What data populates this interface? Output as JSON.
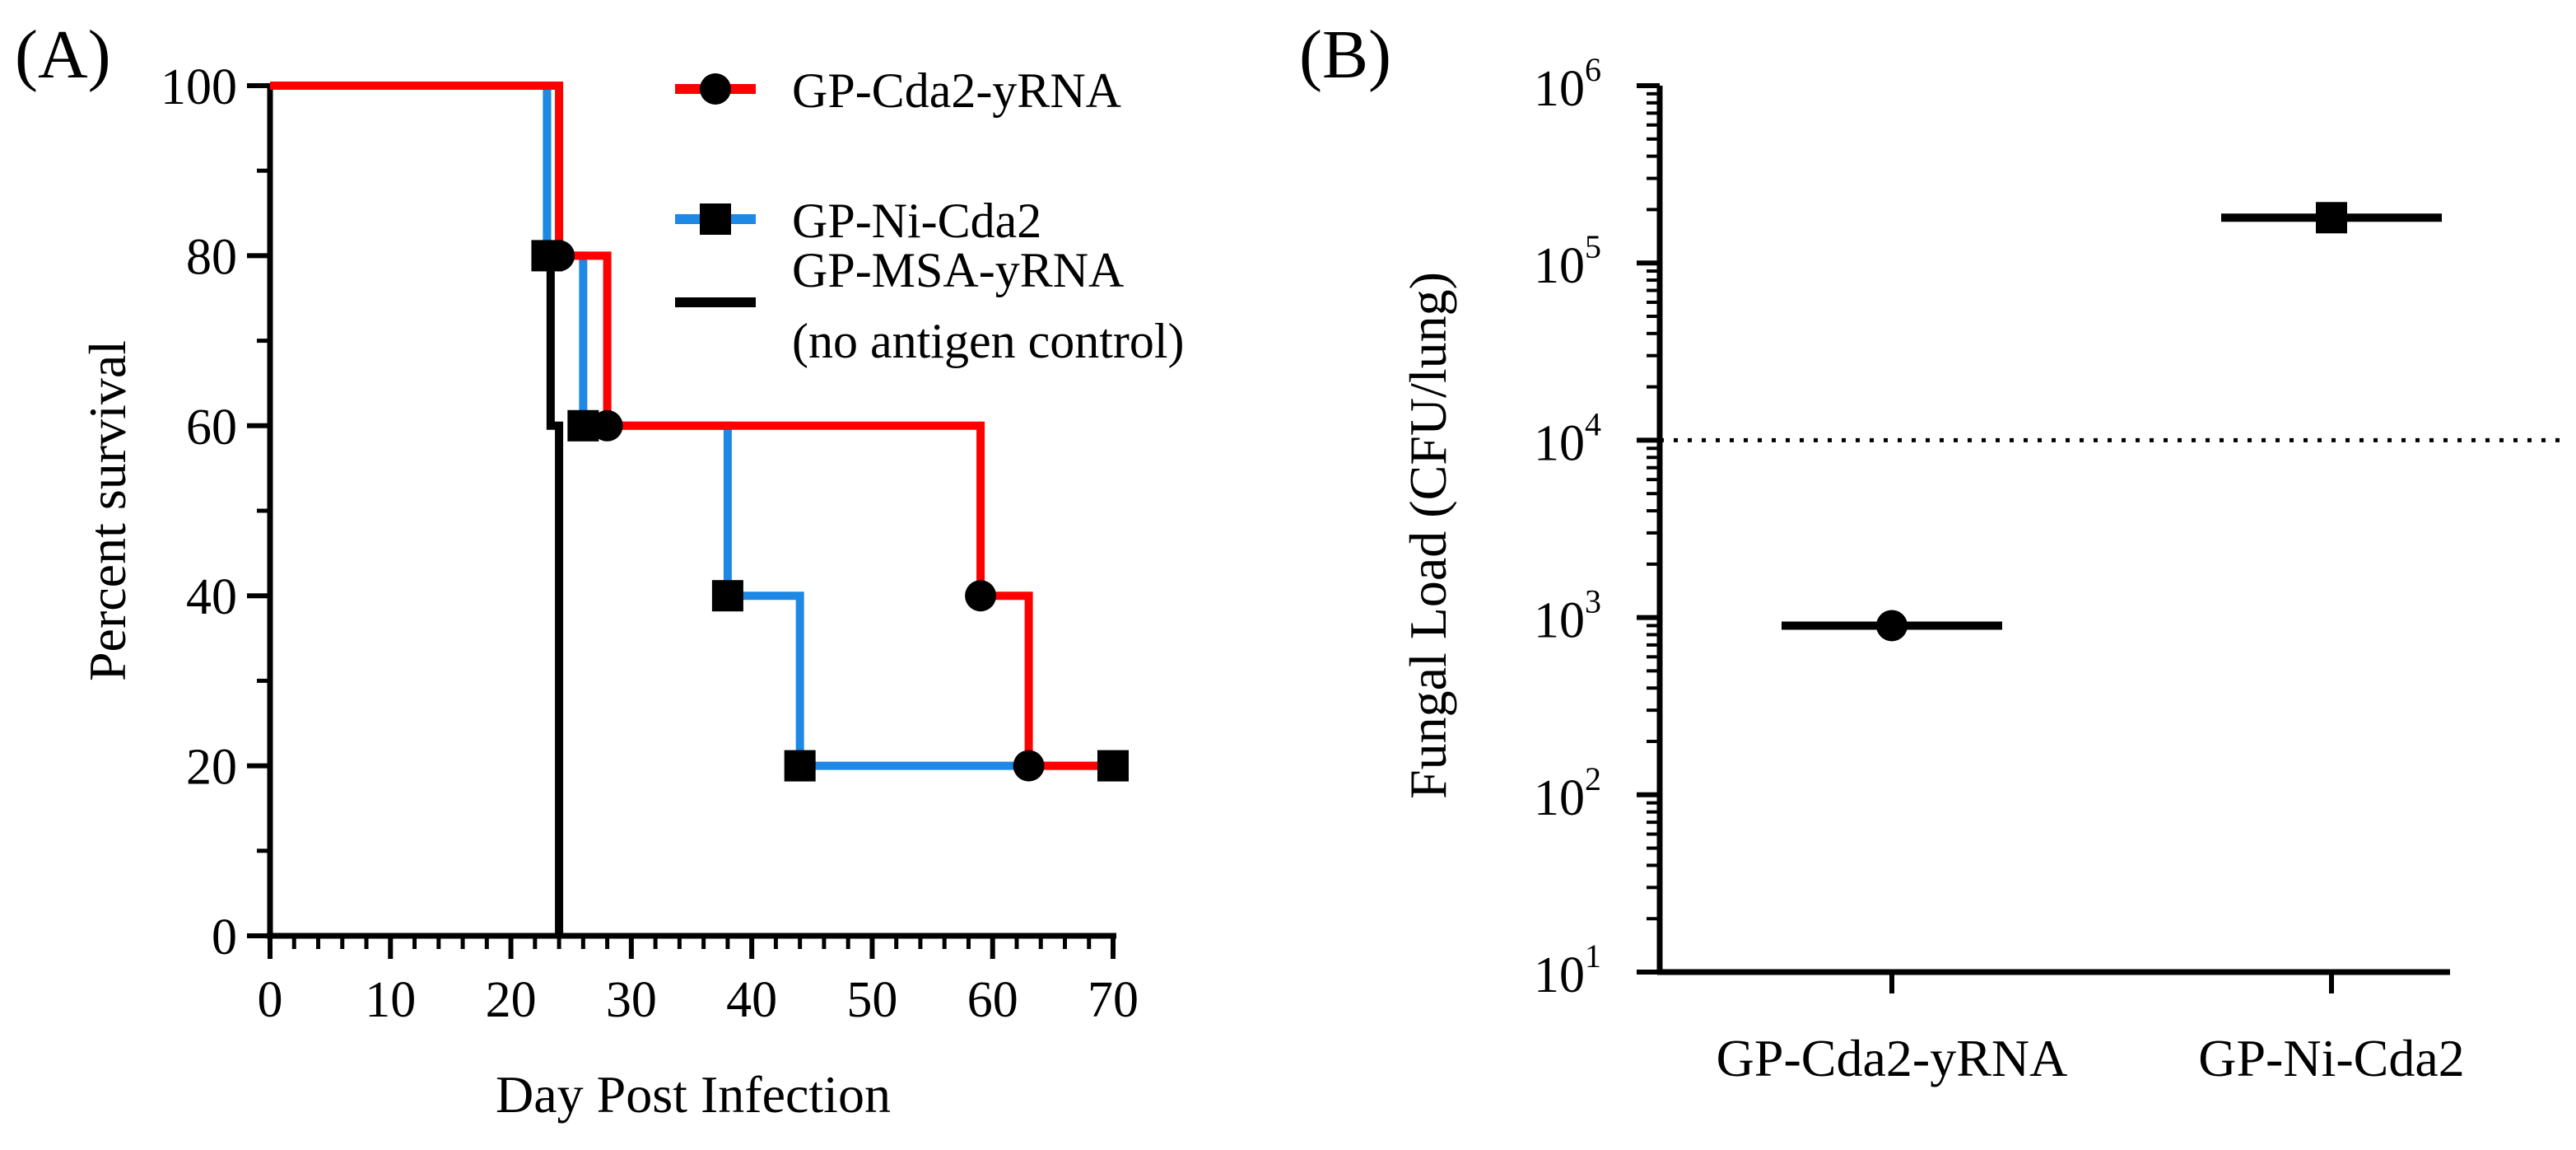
{
  "chart_data": [
    {
      "panel": "(A)",
      "type": "line",
      "subtype": "step",
      "xlabel": "Day Post Infection",
      "ylabel": "Percent survival",
      "xlim": [
        0,
        70
      ],
      "ylim": [
        0,
        100
      ],
      "xticks": [
        "0",
        "10",
        "20",
        "30",
        "40",
        "50",
        "60",
        "70"
      ],
      "yticks": [
        "0",
        "20",
        "40",
        "60",
        "80",
        "100"
      ],
      "legend": "top-right",
      "series": [
        {
          "name": "GP-Cda2-yRNA",
          "color": "#ff0000",
          "marker": "circle",
          "steps": [
            [
              0,
              100
            ],
            [
              24,
              80
            ],
            [
              28,
              60
            ],
            [
              59,
              40
            ],
            [
              63,
              20
            ],
            [
              70,
              20
            ]
          ],
          "markers": [
            [
              24,
              80
            ],
            [
              28,
              60
            ],
            [
              59,
              40
            ],
            [
              63,
              20
            ]
          ]
        },
        {
          "name": "GP-Ni-Cda2",
          "color": "#1e88e5",
          "marker": "square",
          "steps": [
            [
              0,
              100
            ],
            [
              23,
              80
            ],
            [
              26,
              60
            ],
            [
              38,
              40
            ],
            [
              44,
              20
            ],
            [
              70,
              20
            ]
          ],
          "markers": [
            [
              23,
              80
            ],
            [
              26,
              60
            ],
            [
              38,
              40
            ],
            [
              44,
              20
            ],
            [
              70,
              20
            ]
          ]
        },
        {
          "name": "GP-MSA-yRNA",
          "name_line2": "(no antigen control)",
          "color": "#000000",
          "marker": "none",
          "steps": [
            [
              0,
              100
            ],
            [
              23,
              80
            ],
            [
              23.3,
              60
            ],
            [
              24,
              0
            ]
          ],
          "markers": []
        }
      ]
    },
    {
      "panel": "(B)",
      "type": "scatter",
      "yscale": "log",
      "ylabel": "Fungal Load (CFU/lung)",
      "ylim": [
        10,
        1000000
      ],
      "yticks_exp": [
        "1",
        "2",
        "3",
        "4",
        "5",
        "6"
      ],
      "ytick_base": "10",
      "threshold": 10000,
      "categories": [
        "GP-Cda2-yRNA",
        "GP-Ni-Cda2"
      ],
      "series": [
        {
          "name": "GP-Cda2-yRNA",
          "marker": "circle",
          "value": 900
        },
        {
          "name": "GP-Ni-Cda2",
          "marker": "square",
          "value": 180000
        }
      ]
    }
  ]
}
